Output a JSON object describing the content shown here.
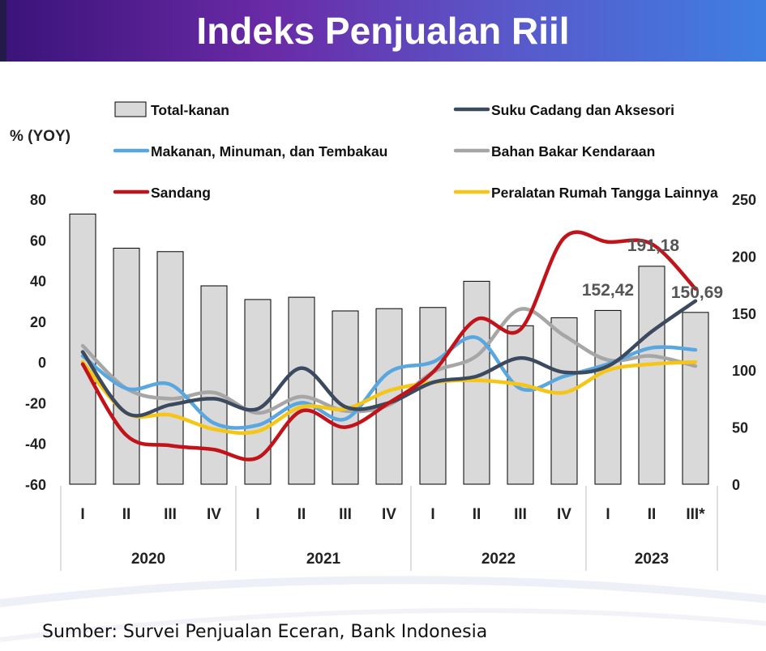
{
  "header": {
    "title": "Indeks Penjualan Riil"
  },
  "footer": {
    "source": "Sumber: Survei Penjualan Eceran, Bank Indonesia"
  },
  "colors": {
    "bars": "#d9d9d9",
    "bar_border": "#000000",
    "Suku Cadang dan Aksesori": "#3b4a5e",
    "Makanan, Minuman, dan Tembakau": "#5aa7e0",
    "Bahan Bakar Kendaraan": "#a6a6a6",
    "Sandang": "#c0141a",
    "Peralatan Rumah Tangga Lainnya": "#f5c518"
  },
  "chart_data": {
    "type": "bar",
    "ylabel": "% (YOY)",
    "ylim": [
      -60,
      80
    ],
    "y_ticks": [
      -60,
      -40,
      -20,
      0,
      20,
      40,
      60,
      80
    ],
    "y2lim": [
      0,
      250
    ],
    "y2_ticks": [
      0,
      50,
      100,
      150,
      200,
      250
    ],
    "grid": false,
    "legend_position": "top",
    "categories": [
      "I",
      "II",
      "III",
      "IV",
      "I",
      "II",
      "III",
      "IV",
      "I",
      "II",
      "III",
      "IV",
      "I",
      "II",
      "III*"
    ],
    "years": [
      {
        "label": "2020",
        "span": 4
      },
      {
        "label": "2021",
        "span": 4
      },
      {
        "label": "2022",
        "span": 4
      },
      {
        "label": "2023",
        "span": 3
      }
    ],
    "bar_series": {
      "name": "Total-kanan",
      "axis": "right",
      "values": [
        237,
        207,
        204,
        174,
        162,
        164,
        152,
        154,
        155,
        178,
        139,
        146,
        152.42,
        191.18,
        150.69
      ]
    },
    "line_series": [
      {
        "name": "Suku Cadang dan Aksesori",
        "values": [
          5,
          -25,
          -21,
          -18,
          -23,
          -3,
          -22,
          -20,
          -10,
          -7,
          2,
          -5,
          -2,
          15,
          30
        ]
      },
      {
        "name": "Makanan, Minuman, dan Tembakau",
        "values": [
          3,
          -13,
          -11,
          -30,
          -31,
          -20,
          -28,
          -5,
          0,
          12,
          -13,
          -7,
          -1,
          7,
          6
        ]
      },
      {
        "name": "Bahan Bakar Kendaraan",
        "values": [
          8,
          -13,
          -18,
          -15,
          -25,
          -17,
          -24,
          -21,
          -5,
          3,
          26,
          13,
          1,
          3,
          -2
        ]
      },
      {
        "name": "Sandang",
        "values": [
          -1,
          -36,
          -41,
          -43,
          -47,
          -24,
          -32,
          -20,
          -5,
          21,
          16,
          61,
          59,
          58,
          36
        ]
      },
      {
        "name": "Peralatan Rumah Tangga Lainnya",
        "values": [
          0,
          -25,
          -26,
          -33,
          -34,
          -22,
          -23,
          -14,
          -10,
          -9,
          -11,
          -15,
          -4,
          -1,
          0
        ]
      }
    ],
    "annotations": [
      {
        "text": "152,42",
        "index": 12
      },
      {
        "text": "191,18",
        "index": 13
      },
      {
        "text": "150,69",
        "index": 14
      }
    ]
  }
}
